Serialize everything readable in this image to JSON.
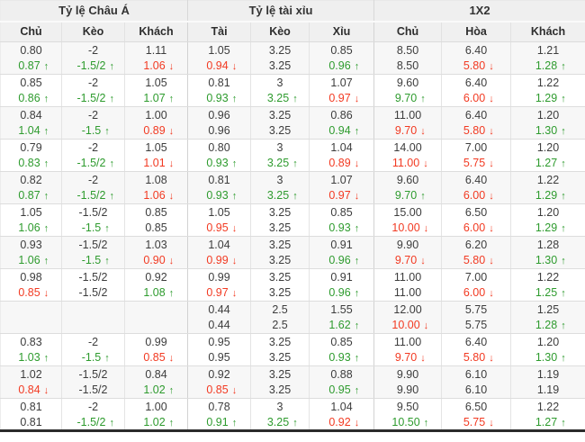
{
  "colors": {
    "up_green": "#2e9b2e",
    "down_red": "#f23a22",
    "header_bg": "#efefef",
    "alt_row_bg": "#f7f7f7"
  },
  "arrows": {
    "up": "↑",
    "down": "↓"
  },
  "sections": [
    {
      "title": "Tỷ lệ Châu Á",
      "columns": [
        "Chủ",
        "Kèo",
        "Khách"
      ]
    },
    {
      "title": "Tỷ lệ tài xỉu",
      "columns": [
        "Tài",
        "Kèo",
        "Xỉu"
      ]
    },
    {
      "title": "1X2",
      "columns": [
        "Chủ",
        "Hòa",
        "Khách"
      ]
    }
  ],
  "rows": [
    {
      "lines": [
        [
          {
            "v": "0.80",
            "d": ""
          },
          {
            "v": "-2",
            "d": ""
          },
          {
            "v": "1.11",
            "d": ""
          },
          {
            "v": "1.05",
            "d": ""
          },
          {
            "v": "3.25",
            "d": ""
          },
          {
            "v": "0.85",
            "d": ""
          },
          {
            "v": "8.50",
            "d": ""
          },
          {
            "v": "6.40",
            "d": ""
          },
          {
            "v": "1.21",
            "d": ""
          }
        ],
        [
          {
            "v": "0.87",
            "d": "up"
          },
          {
            "v": "-1.5/2",
            "d": "up"
          },
          {
            "v": "1.06",
            "d": "down"
          },
          {
            "v": "0.94",
            "d": "down"
          },
          {
            "v": "3.25",
            "d": ""
          },
          {
            "v": "0.96",
            "d": "up"
          },
          {
            "v": "8.50",
            "d": ""
          },
          {
            "v": "5.80",
            "d": "down"
          },
          {
            "v": "1.28",
            "d": "up"
          }
        ]
      ]
    },
    {
      "lines": [
        [
          {
            "v": "0.85",
            "d": ""
          },
          {
            "v": "-2",
            "d": ""
          },
          {
            "v": "1.05",
            "d": ""
          },
          {
            "v": "0.81",
            "d": ""
          },
          {
            "v": "3",
            "d": ""
          },
          {
            "v": "1.07",
            "d": ""
          },
          {
            "v": "9.60",
            "d": ""
          },
          {
            "v": "6.40",
            "d": ""
          },
          {
            "v": "1.22",
            "d": ""
          }
        ],
        [
          {
            "v": "0.86",
            "d": "up"
          },
          {
            "v": "-1.5/2",
            "d": "up"
          },
          {
            "v": "1.07",
            "d": "up"
          },
          {
            "v": "0.93",
            "d": "up"
          },
          {
            "v": "3.25",
            "d": "up"
          },
          {
            "v": "0.97",
            "d": "down"
          },
          {
            "v": "9.70",
            "d": "up"
          },
          {
            "v": "6.00",
            "d": "down"
          },
          {
            "v": "1.29",
            "d": "up"
          }
        ]
      ]
    },
    {
      "lines": [
        [
          {
            "v": "0.84",
            "d": ""
          },
          {
            "v": "-2",
            "d": ""
          },
          {
            "v": "1.00",
            "d": ""
          },
          {
            "v": "0.96",
            "d": ""
          },
          {
            "v": "3.25",
            "d": ""
          },
          {
            "v": "0.86",
            "d": ""
          },
          {
            "v": "11.00",
            "d": ""
          },
          {
            "v": "6.40",
            "d": ""
          },
          {
            "v": "1.20",
            "d": ""
          }
        ],
        [
          {
            "v": "1.04",
            "d": "up"
          },
          {
            "v": "-1.5",
            "d": "up"
          },
          {
            "v": "0.89",
            "d": "down"
          },
          {
            "v": "0.96",
            "d": ""
          },
          {
            "v": "3.25",
            "d": ""
          },
          {
            "v": "0.94",
            "d": "up"
          },
          {
            "v": "9.70",
            "d": "down"
          },
          {
            "v": "5.80",
            "d": "down"
          },
          {
            "v": "1.30",
            "d": "up"
          }
        ]
      ]
    },
    {
      "lines": [
        [
          {
            "v": "0.79",
            "d": ""
          },
          {
            "v": "-2",
            "d": ""
          },
          {
            "v": "1.05",
            "d": ""
          },
          {
            "v": "0.80",
            "d": ""
          },
          {
            "v": "3",
            "d": ""
          },
          {
            "v": "1.04",
            "d": ""
          },
          {
            "v": "14.00",
            "d": ""
          },
          {
            "v": "7.00",
            "d": ""
          },
          {
            "v": "1.20",
            "d": ""
          }
        ],
        [
          {
            "v": "0.83",
            "d": "up"
          },
          {
            "v": "-1.5/2",
            "d": "up"
          },
          {
            "v": "1.01",
            "d": "down"
          },
          {
            "v": "0.93",
            "d": "up"
          },
          {
            "v": "3.25",
            "d": "up"
          },
          {
            "v": "0.89",
            "d": "down"
          },
          {
            "v": "11.00",
            "d": "down"
          },
          {
            "v": "5.75",
            "d": "down"
          },
          {
            "v": "1.27",
            "d": "up"
          }
        ]
      ]
    },
    {
      "lines": [
        [
          {
            "v": "0.82",
            "d": ""
          },
          {
            "v": "-2",
            "d": ""
          },
          {
            "v": "1.08",
            "d": ""
          },
          {
            "v": "0.81",
            "d": ""
          },
          {
            "v": "3",
            "d": ""
          },
          {
            "v": "1.07",
            "d": ""
          },
          {
            "v": "9.60",
            "d": ""
          },
          {
            "v": "6.40",
            "d": ""
          },
          {
            "v": "1.22",
            "d": ""
          }
        ],
        [
          {
            "v": "0.87",
            "d": "up"
          },
          {
            "v": "-1.5/2",
            "d": "up"
          },
          {
            "v": "1.06",
            "d": "down"
          },
          {
            "v": "0.93",
            "d": "up"
          },
          {
            "v": "3.25",
            "d": "up"
          },
          {
            "v": "0.97",
            "d": "down"
          },
          {
            "v": "9.70",
            "d": "up"
          },
          {
            "v": "6.00",
            "d": "down"
          },
          {
            "v": "1.29",
            "d": "up"
          }
        ]
      ]
    },
    {
      "lines": [
        [
          {
            "v": "1.05",
            "d": ""
          },
          {
            "v": "-1.5/2",
            "d": ""
          },
          {
            "v": "0.85",
            "d": ""
          },
          {
            "v": "1.05",
            "d": ""
          },
          {
            "v": "3.25",
            "d": ""
          },
          {
            "v": "0.85",
            "d": ""
          },
          {
            "v": "15.00",
            "d": ""
          },
          {
            "v": "6.50",
            "d": ""
          },
          {
            "v": "1.20",
            "d": ""
          }
        ],
        [
          {
            "v": "1.06",
            "d": "up"
          },
          {
            "v": "-1.5",
            "d": "up"
          },
          {
            "v": "0.85",
            "d": ""
          },
          {
            "v": "0.95",
            "d": "down"
          },
          {
            "v": "3.25",
            "d": ""
          },
          {
            "v": "0.93",
            "d": "up"
          },
          {
            "v": "10.00",
            "d": "down"
          },
          {
            "v": "6.00",
            "d": "down"
          },
          {
            "v": "1.29",
            "d": "up"
          }
        ]
      ]
    },
    {
      "lines": [
        [
          {
            "v": "0.93",
            "d": ""
          },
          {
            "v": "-1.5/2",
            "d": ""
          },
          {
            "v": "1.03",
            "d": ""
          },
          {
            "v": "1.04",
            "d": ""
          },
          {
            "v": "3.25",
            "d": ""
          },
          {
            "v": "0.91",
            "d": ""
          },
          {
            "v": "9.90",
            "d": ""
          },
          {
            "v": "6.20",
            "d": ""
          },
          {
            "v": "1.28",
            "d": ""
          }
        ],
        [
          {
            "v": "1.06",
            "d": "up"
          },
          {
            "v": "-1.5",
            "d": "up"
          },
          {
            "v": "0.90",
            "d": "down"
          },
          {
            "v": "0.99",
            "d": "down"
          },
          {
            "v": "3.25",
            "d": ""
          },
          {
            "v": "0.96",
            "d": "up"
          },
          {
            "v": "9.70",
            "d": "down"
          },
          {
            "v": "5.80",
            "d": "down"
          },
          {
            "v": "1.30",
            "d": "up"
          }
        ]
      ]
    },
    {
      "lines": [
        [
          {
            "v": "0.98",
            "d": ""
          },
          {
            "v": "-1.5/2",
            "d": ""
          },
          {
            "v": "0.92",
            "d": ""
          },
          {
            "v": "0.99",
            "d": ""
          },
          {
            "v": "3.25",
            "d": ""
          },
          {
            "v": "0.91",
            "d": ""
          },
          {
            "v": "11.00",
            "d": ""
          },
          {
            "v": "7.00",
            "d": ""
          },
          {
            "v": "1.22",
            "d": ""
          }
        ],
        [
          {
            "v": "0.85",
            "d": "down"
          },
          {
            "v": "-1.5/2",
            "d": ""
          },
          {
            "v": "1.08",
            "d": "up"
          },
          {
            "v": "0.97",
            "d": "down"
          },
          {
            "v": "3.25",
            "d": ""
          },
          {
            "v": "0.96",
            "d": "up"
          },
          {
            "v": "11.00",
            "d": ""
          },
          {
            "v": "6.00",
            "d": "down"
          },
          {
            "v": "1.25",
            "d": "up"
          }
        ]
      ]
    },
    {
      "lines": [
        [
          {
            "v": "",
            "d": ""
          },
          {
            "v": "",
            "d": ""
          },
          {
            "v": "",
            "d": ""
          },
          {
            "v": "0.44",
            "d": ""
          },
          {
            "v": "2.5",
            "d": ""
          },
          {
            "v": "1.55",
            "d": ""
          },
          {
            "v": "12.00",
            "d": ""
          },
          {
            "v": "5.75",
            "d": ""
          },
          {
            "v": "1.25",
            "d": ""
          }
        ],
        [
          {
            "v": "",
            "d": ""
          },
          {
            "v": "",
            "d": ""
          },
          {
            "v": "",
            "d": ""
          },
          {
            "v": "0.44",
            "d": ""
          },
          {
            "v": "2.5",
            "d": ""
          },
          {
            "v": "1.62",
            "d": "up"
          },
          {
            "v": "10.00",
            "d": "down"
          },
          {
            "v": "5.75",
            "d": ""
          },
          {
            "v": "1.28",
            "d": "up"
          }
        ]
      ]
    },
    {
      "lines": [
        [
          {
            "v": "0.83",
            "d": ""
          },
          {
            "v": "-2",
            "d": ""
          },
          {
            "v": "0.99",
            "d": ""
          },
          {
            "v": "0.95",
            "d": ""
          },
          {
            "v": "3.25",
            "d": ""
          },
          {
            "v": "0.85",
            "d": ""
          },
          {
            "v": "11.00",
            "d": ""
          },
          {
            "v": "6.40",
            "d": ""
          },
          {
            "v": "1.20",
            "d": ""
          }
        ],
        [
          {
            "v": "1.03",
            "d": "up"
          },
          {
            "v": "-1.5",
            "d": "up"
          },
          {
            "v": "0.85",
            "d": "down"
          },
          {
            "v": "0.95",
            "d": ""
          },
          {
            "v": "3.25",
            "d": ""
          },
          {
            "v": "0.93",
            "d": "up"
          },
          {
            "v": "9.70",
            "d": "down"
          },
          {
            "v": "5.80",
            "d": "down"
          },
          {
            "v": "1.30",
            "d": "up"
          }
        ]
      ]
    },
    {
      "lines": [
        [
          {
            "v": "1.02",
            "d": ""
          },
          {
            "v": "-1.5/2",
            "d": ""
          },
          {
            "v": "0.84",
            "d": ""
          },
          {
            "v": "0.92",
            "d": ""
          },
          {
            "v": "3.25",
            "d": ""
          },
          {
            "v": "0.88",
            "d": ""
          },
          {
            "v": "9.90",
            "d": ""
          },
          {
            "v": "6.10",
            "d": ""
          },
          {
            "v": "1.19",
            "d": ""
          }
        ],
        [
          {
            "v": "0.84",
            "d": "down"
          },
          {
            "v": "-1.5/2",
            "d": ""
          },
          {
            "v": "1.02",
            "d": "up"
          },
          {
            "v": "0.85",
            "d": "down"
          },
          {
            "v": "3.25",
            "d": ""
          },
          {
            "v": "0.95",
            "d": "up"
          },
          {
            "v": "9.90",
            "d": ""
          },
          {
            "v": "6.10",
            "d": ""
          },
          {
            "v": "1.19",
            "d": ""
          }
        ]
      ]
    },
    {
      "lines": [
        [
          {
            "v": "0.81",
            "d": ""
          },
          {
            "v": "-2",
            "d": ""
          },
          {
            "v": "1.00",
            "d": ""
          },
          {
            "v": "0.78",
            "d": ""
          },
          {
            "v": "3",
            "d": ""
          },
          {
            "v": "1.04",
            "d": ""
          },
          {
            "v": "9.50",
            "d": ""
          },
          {
            "v": "6.50",
            "d": ""
          },
          {
            "v": "1.22",
            "d": ""
          }
        ],
        [
          {
            "v": "0.81",
            "d": ""
          },
          {
            "v": "-1.5/2",
            "d": "up"
          },
          {
            "v": "1.02",
            "d": "up"
          },
          {
            "v": "0.91",
            "d": "up"
          },
          {
            "v": "3.25",
            "d": "up"
          },
          {
            "v": "0.92",
            "d": "down"
          },
          {
            "v": "10.50",
            "d": "up"
          },
          {
            "v": "5.75",
            "d": "down"
          },
          {
            "v": "1.27",
            "d": "up"
          }
        ]
      ]
    }
  ]
}
